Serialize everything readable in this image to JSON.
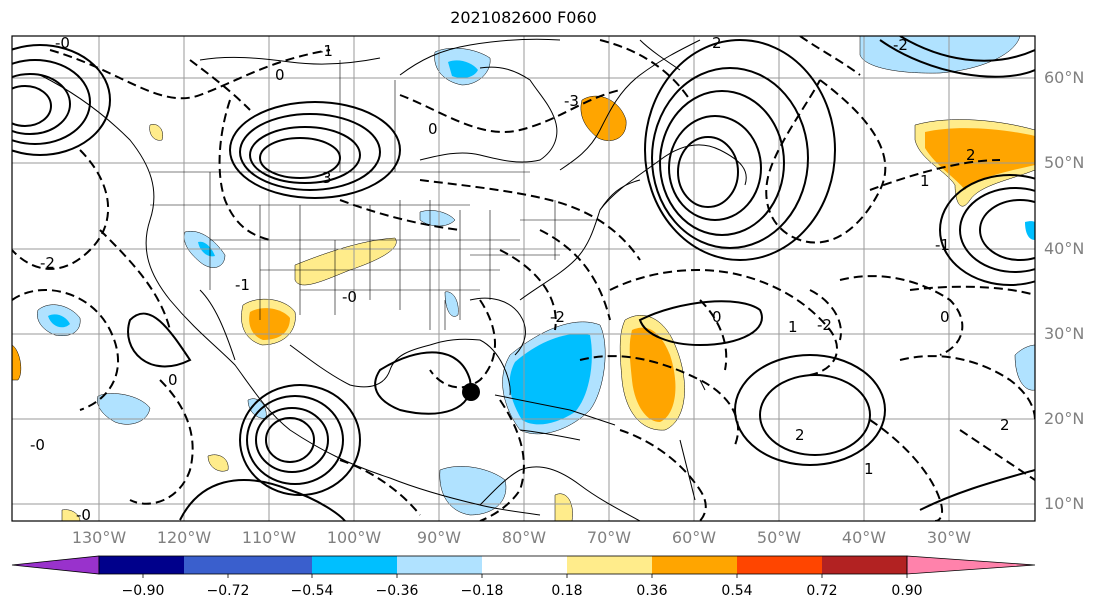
{
  "title": "2021082600 F060",
  "lat_labels": [
    "60°N",
    "50°N",
    "40°N",
    "30°N",
    "20°N",
    "10°N"
  ],
  "lon_labels": [
    "130°W",
    "120°W",
    "110°W",
    "100°W",
    "90°W",
    "80°W",
    "70°W",
    "60°W",
    "50°W",
    "40°W",
    "30°W"
  ],
  "colorbar": {
    "ticks": [
      "−0.90",
      "−0.72",
      "−0.54",
      "−0.36",
      "−0.18",
      "0.18",
      "0.36",
      "0.54",
      "0.72",
      "0.90"
    ],
    "colors": [
      "#9932cc",
      "#00008b",
      "#3a5fcd",
      "#00bfff",
      "#b0e2ff",
      "#ffffff",
      "#ffec8b",
      "#ffa500",
      "#ff4500",
      "#b22222",
      "#ff82ab"
    ]
  },
  "contour_labels": [
    "-0",
    "-1",
    "0",
    "2",
    "-2",
    "3",
    "-3",
    "0",
    "1",
    "-1",
    "2",
    "-2",
    "0",
    "-0",
    "2",
    "-2",
    "0",
    "1",
    "-1",
    "-2",
    "2",
    "1",
    "-0",
    "0",
    "-0"
  ],
  "storm_marker": {
    "lat": 24.5,
    "lon": -84.5
  }
}
